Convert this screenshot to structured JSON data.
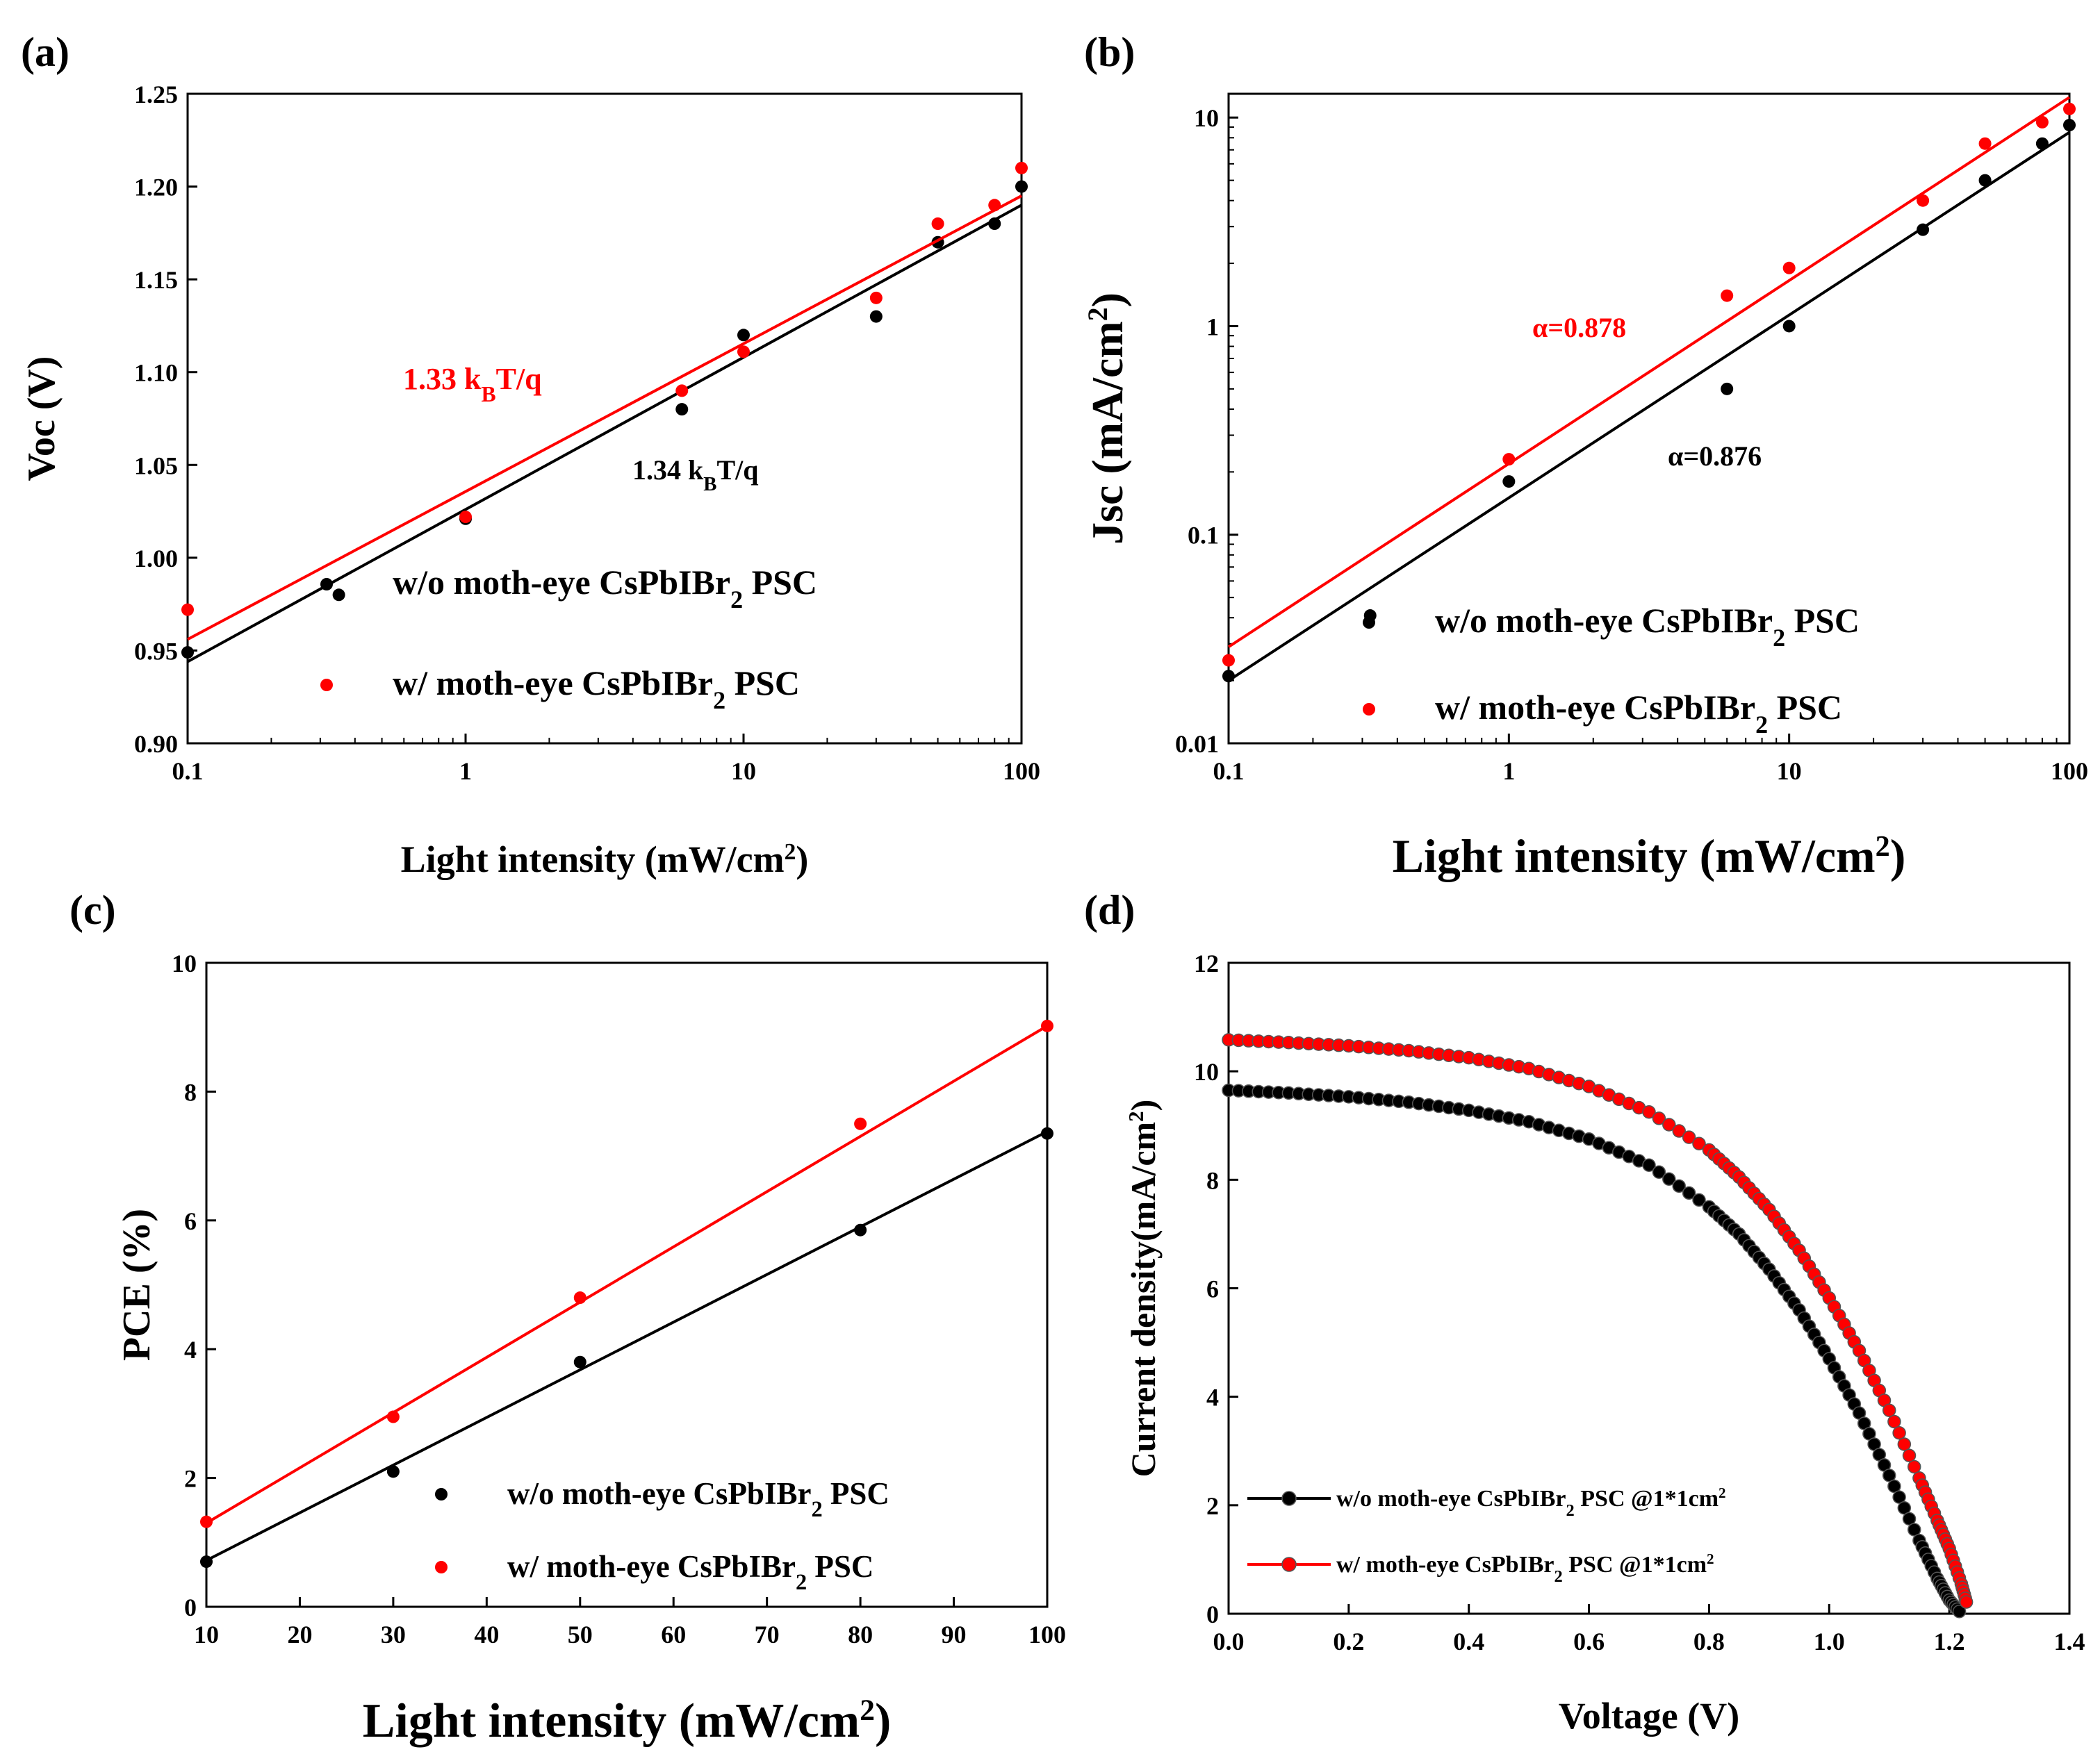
{
  "colors": {
    "black_series": "#000000",
    "red_series": "#ff0000",
    "axis": "#000000"
  },
  "chart_data": [
    {
      "id": "a",
      "panel_label": "(a)",
      "type": "scatter",
      "xscale": "log",
      "xlim": [
        0.1,
        100
      ],
      "ylim": [
        0.9,
        1.25
      ],
      "xticks": [
        0.1,
        1,
        10,
        100
      ],
      "xtick_labels": [
        "0.1",
        "1",
        "10",
        "100"
      ],
      "yticks": [
        0.9,
        0.95,
        1.0,
        1.05,
        1.1,
        1.15,
        1.2,
        1.25
      ],
      "ytick_labels": [
        "0.90",
        "0.95",
        "1.00",
        "1.05",
        "1.10",
        "1.15",
        "1.20",
        "1.25"
      ],
      "xlabel": {
        "main": "Light intensity (mW/cm",
        "sup": "2",
        "end": ")"
      },
      "ylabel": "Voc (V)",
      "legend_position": "bottom-right",
      "series": [
        {
          "name": "w/o moth-eye CsPbIBr2 PSC",
          "legend_main": "w/o moth-eye CsPbIBr",
          "legend_sub": "2",
          "legend_end": "  PSC",
          "color": "#000000",
          "x": [
            0.1,
            0.35,
            1,
            6,
            10,
            30,
            50,
            80,
            100
          ],
          "y": [
            0.949,
            0.98,
            1.021,
            1.08,
            1.12,
            1.13,
            1.17,
            1.18,
            1.2
          ],
          "fit": [
            [
              0.1,
              0.944
            ],
            [
              100,
              1.19
            ]
          ]
        },
        {
          "name": "w/ moth-eye CsPbIBr2 PSC",
          "legend_main": "w/   moth-eye CsPbIBr",
          "legend_sub": "2",
          "legend_end": "  PSC",
          "color": "#ff0000",
          "x": [
            0.1,
            1,
            6,
            10,
            30,
            50,
            80,
            100
          ],
          "y": [
            0.972,
            1.022,
            1.09,
            1.111,
            1.14,
            1.18,
            1.19,
            1.21
          ],
          "fit": [
            [
              0.1,
              0.956
            ],
            [
              100,
              1.195
            ]
          ]
        }
      ],
      "annotations": [
        {
          "main": "1.33 k",
          "sub": "B",
          "end": "T/q",
          "color": "#ff0000"
        },
        {
          "main": "1.34 k",
          "sub": "B",
          "end": "T/q",
          "color": "#000000"
        }
      ]
    },
    {
      "id": "b",
      "panel_label": "(b)",
      "type": "scatter",
      "xscale": "log",
      "yscale": "log",
      "xlim": [
        0.1,
        100
      ],
      "ylim": [
        0.01,
        13
      ],
      "xticks": [
        0.1,
        1,
        10,
        100
      ],
      "xtick_labels": [
        "0.1",
        "1",
        "10",
        "100"
      ],
      "yticks": [
        0.01,
        0.1,
        1,
        10
      ],
      "ytick_labels": [
        "0.01",
        "0.1",
        "1",
        "10"
      ],
      "xlabel": {
        "main": "Light intensity (mW/cm",
        "sup": "2",
        "end": ")"
      },
      "ylabel": {
        "main": "Jsc (mA/cm",
        "sup": "2",
        "end": ")"
      },
      "legend_position": "bottom-right",
      "series": [
        {
          "name": "w/o moth-eye CsPbIBr2 PSC",
          "legend_main": "w/o moth-eye CsPbIBr",
          "legend_sub": "2",
          "legend_end": " PSC",
          "color": "#000000",
          "x": [
            0.1,
            0.32,
            1,
            6,
            10,
            30,
            50,
            80,
            100
          ],
          "y": [
            0.021,
            0.041,
            0.18,
            0.5,
            1.0,
            2.9,
            5.0,
            7.5,
            9.2
          ],
          "fit": [
            [
              0.1,
              0.02
            ],
            [
              100,
              8.5
            ]
          ]
        },
        {
          "name": "w/ moth-eye CsPbIBr2 PSC",
          "legend_main": "w/   moth-eye CsPbIBr",
          "legend_sub": "2",
          "legend_end": " PSC",
          "color": "#ff0000",
          "x": [
            0.1,
            1,
            6,
            10,
            30,
            50,
            80,
            100
          ],
          "y": [
            0.025,
            0.23,
            1.4,
            1.9,
            4.0,
            7.5,
            9.5,
            11.0
          ],
          "fit": [
            [
              0.1,
              0.029
            ],
            [
              100,
              12.5
            ]
          ]
        }
      ],
      "annotations": [
        {
          "main": "α=0.878",
          "color": "#ff0000"
        },
        {
          "main": "α=0.876",
          "color": "#000000"
        }
      ]
    },
    {
      "id": "c",
      "panel_label": "(c)",
      "type": "scatter",
      "xlim": [
        10,
        100
      ],
      "ylim": [
        0,
        10
      ],
      "xticks": [
        10,
        20,
        30,
        40,
        50,
        60,
        70,
        80,
        90,
        100
      ],
      "xtick_labels": [
        "10",
        "20",
        "30",
        "40",
        "50",
        "60",
        "70",
        "80",
        "90",
        "100"
      ],
      "yticks": [
        0,
        2,
        4,
        6,
        8,
        10
      ],
      "ytick_labels": [
        "0",
        "2",
        "4",
        "6",
        "8",
        "10"
      ],
      "xlabel": {
        "main": "Light intensity (mW/cm",
        "sup": "2",
        "end": ")"
      },
      "ylabel": "PCE (%)",
      "legend_position": "bottom-right",
      "series": [
        {
          "name": "w/o moth-eye CsPbIBr2 PSC",
          "legend_main": "w/o  moth-eye CsPbIBr",
          "legend_sub": "2",
          "legend_end": "  PSC",
          "color": "#000000",
          "x": [
            10,
            30,
            50,
            80,
            100
          ],
          "y": [
            0.7,
            2.1,
            3.8,
            5.85,
            7.35
          ],
          "fit": [
            [
              10,
              0.72
            ],
            [
              100,
              7.38
            ]
          ]
        },
        {
          "name": "w/ moth-eye CsPbIBr2 PSC",
          "legend_main": "w/    moth-eye CsPbIBr",
          "legend_sub": "2",
          "legend_end": "  PSC",
          "color": "#ff0000",
          "x": [
            10,
            30,
            50,
            80,
            100
          ],
          "y": [
            1.32,
            2.95,
            4.8,
            7.5,
            9.02
          ],
          "fit": [
            [
              10,
              1.3
            ],
            [
              100,
              9.02
            ]
          ]
        }
      ]
    },
    {
      "id": "d",
      "panel_label": "(d)",
      "type": "line",
      "xlim": [
        0,
        1.4
      ],
      "ylim": [
        0,
        12
      ],
      "xticks": [
        0,
        0.2,
        0.4,
        0.6,
        0.8,
        1.0,
        1.2,
        1.4
      ],
      "xtick_labels": [
        "0.0",
        "0.2",
        "0.4",
        "0.6",
        "0.8",
        "1.0",
        "1.2",
        "1.4"
      ],
      "yticks": [
        0,
        2,
        4,
        6,
        8,
        10,
        12
      ],
      "ytick_labels": [
        "0",
        "2",
        "4",
        "6",
        "8",
        "10",
        "12"
      ],
      "xlabel": {
        "main": "Voltage (V)"
      },
      "ylabel": {
        "main": "Current density(mA/cm",
        "sup": "2",
        "end": ")"
      },
      "legend_position": "bottom-left",
      "series": [
        {
          "name": "w/o moth-eye CsPbIBr2 PSC @1*1cm2",
          "legend_main": "w/o moth-eye CsPbIBr",
          "legend_sub": "2",
          "legend_end": "  PSC @1*1cm",
          "legend_sup": "2",
          "color": "#000000",
          "x": [
            0,
            0.1,
            0.2,
            0.3,
            0.4,
            0.5,
            0.6,
            0.7,
            0.8,
            0.85,
            0.9,
            0.95,
            1.0,
            1.05,
            1.1,
            1.15,
            1.18,
            1.2,
            1.22,
            1.23
          ],
          "y": [
            9.65,
            9.6,
            9.53,
            9.43,
            9.28,
            9.07,
            8.75,
            8.27,
            7.5,
            7.0,
            6.35,
            5.6,
            4.7,
            3.7,
            2.55,
            1.35,
            0.65,
            0.25,
            0.0,
            0.0
          ]
        },
        {
          "name": "w/ moth-eye CsPbIBr2 PSC @1*1cm2",
          "legend_main": "w/   moth-eye CsPbIBr",
          "legend_sub": "2",
          "legend_end": "  PSC @1*1cm",
          "legend_sup": "2",
          "color": "#ff0000",
          "x": [
            0,
            0.1,
            0.2,
            0.3,
            0.4,
            0.5,
            0.6,
            0.7,
            0.8,
            0.85,
            0.9,
            0.95,
            1.0,
            1.05,
            1.1,
            1.15,
            1.18,
            1.2,
            1.22,
            1.23
          ],
          "y": [
            10.58,
            10.53,
            10.47,
            10.38,
            10.25,
            10.05,
            9.72,
            9.25,
            8.55,
            8.05,
            7.45,
            6.7,
            5.82,
            4.85,
            3.75,
            2.5,
            1.72,
            1.2,
            0.55,
            0.15
          ]
        }
      ]
    }
  ]
}
